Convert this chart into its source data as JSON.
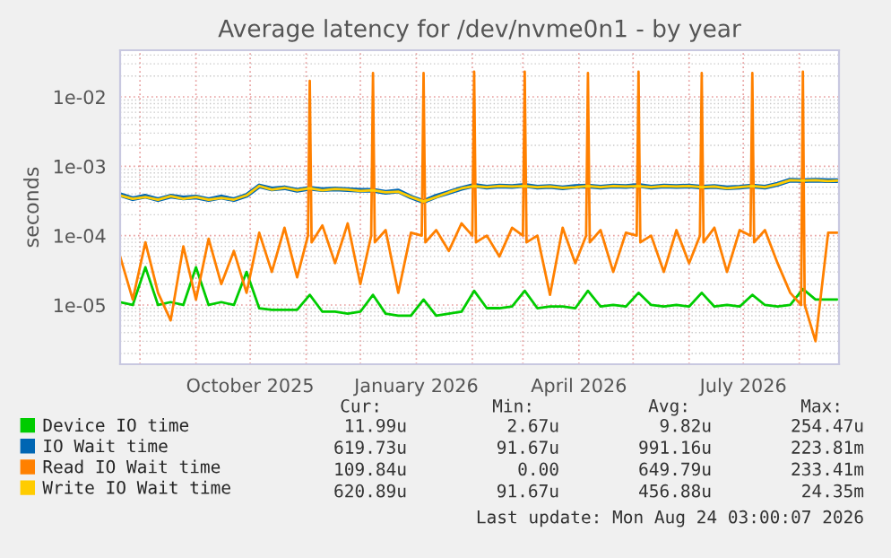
{
  "chart_data": {
    "type": "line",
    "title": "Average latency for /dev/nvme0n1 - by year",
    "ylabel": "seconds",
    "log": "y",
    "grid": true,
    "legend": "bottom",
    "marker": "none",
    "line_style": "solid",
    "xlim": [
      "2025-07-21",
      "2026-08-23"
    ],
    "xticks": [
      {
        "value": "2025-08-01",
        "label": null
      },
      {
        "value": "2025-09-01",
        "label": null
      },
      {
        "value": "2025-10-01",
        "label": "October 2025"
      },
      {
        "value": "2025-11-01",
        "label": null
      },
      {
        "value": "2025-12-01",
        "label": null
      },
      {
        "value": "2026-01-01",
        "label": "January 2026"
      },
      {
        "value": "2026-02-01",
        "label": null
      },
      {
        "value": "2026-03-01",
        "label": null
      },
      {
        "value": "2026-04-01",
        "label": "April 2026"
      },
      {
        "value": "2026-05-01",
        "label": null
      },
      {
        "value": "2026-06-01",
        "label": null
      },
      {
        "value": "2026-07-01",
        "label": "July 2026"
      },
      {
        "value": "2026-08-01",
        "label": null
      }
    ],
    "ylim": [
      1.4e-06,
      0.047
    ],
    "yticks": [
      {
        "value": 1e-05,
        "label": "1e-05"
      },
      {
        "value": 0.0001,
        "label": "1e-04"
      },
      {
        "value": 0.001,
        "label": "1e-03"
      },
      {
        "value": 0.01,
        "label": "1e-02"
      }
    ],
    "x": [
      "2025-07-21",
      "2025-07-28",
      "2025-08-04",
      "2025-08-11",
      "2025-08-18",
      "2025-08-25",
      "2025-09-01",
      "2025-09-08",
      "2025-09-15",
      "2025-09-22",
      "2025-09-29",
      "2025-10-06",
      "2025-10-13",
      "2025-10-20",
      "2025-10-27",
      "2025-11-03",
      "2025-11-10",
      "2025-11-17",
      "2025-11-24",
      "2025-12-01",
      "2025-12-08",
      "2025-12-15",
      "2025-12-22",
      "2025-12-29",
      "2026-01-05",
      "2026-01-12",
      "2026-01-19",
      "2026-01-26",
      "2026-02-02",
      "2026-02-09",
      "2026-02-16",
      "2026-02-23",
      "2026-03-02",
      "2026-03-09",
      "2026-03-16",
      "2026-03-23",
      "2026-03-30",
      "2026-04-06",
      "2026-04-13",
      "2026-04-20",
      "2026-04-27",
      "2026-05-04",
      "2026-05-11",
      "2026-05-18",
      "2026-05-25",
      "2026-06-01",
      "2026-06-08",
      "2026-06-15",
      "2026-06-22",
      "2026-06-29",
      "2026-07-06",
      "2026-07-13",
      "2026-07-20",
      "2026-07-27",
      "2026-08-03",
      "2026-08-10",
      "2026-08-17",
      "2026-08-22"
    ],
    "series": [
      {
        "name": "Device IO time",
        "color": "#00cc00",
        "values": [
          1.1e-05,
          1e-05,
          3.5e-05,
          1e-05,
          1.1e-05,
          1e-05,
          3.5e-05,
          1e-05,
          1.1e-05,
          1e-05,
          3e-05,
          9e-06,
          8.5e-06,
          8.5e-06,
          8.5e-06,
          1.4e-05,
          8e-06,
          8e-06,
          7.5e-06,
          8e-06,
          1.4e-05,
          7.5e-06,
          7e-06,
          7e-06,
          1.2e-05,
          7e-06,
          7.5e-06,
          8e-06,
          1.6e-05,
          9e-06,
          9e-06,
          9.5e-06,
          1.6e-05,
          9e-06,
          9.5e-06,
          9.5e-06,
          9e-06,
          1.6e-05,
          9.5e-06,
          1e-05,
          9.5e-06,
          1.5e-05,
          1e-05,
          9.5e-06,
          1e-05,
          9.5e-06,
          1.5e-05,
          9.5e-06,
          1e-05,
          9.5e-06,
          1.4e-05,
          1e-05,
          9.5e-06,
          1e-05,
          1.7e-05,
          1.2e-05,
          1.2e-05,
          1.2e-05
        ]
      },
      {
        "name": "IO Wait time",
        "color": "#0066b3",
        "values": [
          0.00039,
          0.00034,
          0.00037,
          0.00033,
          0.00037,
          0.00035,
          0.00036,
          0.00033,
          0.00036,
          0.00033,
          0.00038,
          0.00052,
          0.00047,
          0.00049,
          0.00045,
          0.00048,
          0.00046,
          0.00047,
          0.00046,
          0.00045,
          0.00045,
          0.00042,
          0.00044,
          0.00036,
          0.00031,
          0.00037,
          0.00042,
          0.00048,
          0.00053,
          0.0005,
          0.00052,
          0.00051,
          0.00053,
          0.0005,
          0.00051,
          0.00049,
          0.00051,
          0.00052,
          0.0005,
          0.00052,
          0.00051,
          0.00053,
          0.0005,
          0.00052,
          0.00051,
          0.00052,
          0.0005,
          0.00051,
          0.00049,
          0.0005,
          0.00052,
          0.0005,
          0.00055,
          0.00063,
          0.00062,
          0.00063,
          0.00062,
          0.00062
        ]
      },
      {
        "name": "Read IO Wait time",
        "color": "#ff8000",
        "x": [
          "2025-07-21",
          "2025-07-28",
          "2025-08-04",
          "2025-08-11",
          "2025-08-18",
          "2025-08-25",
          "2025-09-01",
          "2025-09-08",
          "2025-09-15",
          "2025-09-22",
          "2025-09-29",
          "2025-10-06",
          "2025-10-13",
          "2025-10-20",
          "2025-10-27",
          "2025-11-02",
          "2025-11-03",
          "2025-11-04",
          "2025-11-10",
          "2025-11-17",
          "2025-11-24",
          "2025-12-01",
          "2025-12-07",
          "2025-12-08",
          "2025-12-09",
          "2025-12-15",
          "2025-12-22",
          "2025-12-29",
          "2026-01-04",
          "2026-01-05",
          "2026-01-06",
          "2026-01-12",
          "2026-01-19",
          "2026-01-26",
          "2026-02-01",
          "2026-02-02",
          "2026-02-03",
          "2026-02-09",
          "2026-02-16",
          "2026-02-23",
          "2026-03-01",
          "2026-03-02",
          "2026-03-03",
          "2026-03-09",
          "2026-03-16",
          "2026-03-23",
          "2026-03-30",
          "2026-04-05",
          "2026-04-06",
          "2026-04-07",
          "2026-04-13",
          "2026-04-20",
          "2026-04-27",
          "2026-05-03",
          "2026-05-04",
          "2026-05-05",
          "2026-05-11",
          "2026-05-18",
          "2026-05-25",
          "2026-06-01",
          "2026-06-07",
          "2026-06-08",
          "2026-06-09",
          "2026-06-15",
          "2026-06-22",
          "2026-06-29",
          "2026-07-05",
          "2026-07-06",
          "2026-07-07",
          "2026-07-13",
          "2026-07-20",
          "2026-07-27",
          "2026-08-02",
          "2026-08-03",
          "2026-08-04",
          "2026-08-10",
          "2026-08-17",
          "2026-08-22"
        ],
        "values": [
          5e-05,
          1.2e-05,
          8e-05,
          1.5e-05,
          6e-06,
          7e-05,
          1.2e-05,
          9e-05,
          2e-05,
          6e-05,
          1.5e-05,
          0.00011,
          3e-05,
          0.00013,
          2.5e-05,
          0.0001,
          0.017,
          8e-05,
          0.00014,
          4e-05,
          0.00015,
          2e-05,
          0.0001,
          0.022,
          8e-05,
          0.00012,
          1.5e-05,
          0.00011,
          0.0001,
          0.022,
          8e-05,
          0.00012,
          6e-05,
          0.00015,
          0.0001,
          0.023,
          8e-05,
          0.0001,
          5e-05,
          0.00013,
          0.0001,
          0.023,
          8e-05,
          0.0001,
          1.4e-05,
          0.00013,
          4e-05,
          0.0001,
          0.022,
          8e-05,
          0.00012,
          3e-05,
          0.00011,
          0.0001,
          0.023,
          8e-05,
          0.0001,
          3e-05,
          0.00012,
          4e-05,
          0.0001,
          0.022,
          8e-05,
          0.00013,
          3e-05,
          0.00012,
          0.0001,
          0.022,
          8e-05,
          0.00012,
          4e-05,
          1.5e-05,
          1e-05,
          0.023,
          1e-05,
          3e-06,
          0.00011,
          0.00011
        ]
      },
      {
        "name": "Write IO Wait time",
        "color": "#ffcc00",
        "values": [
          0.00038,
          0.00034,
          0.00036,
          0.00033,
          0.00037,
          0.00034,
          0.00036,
          0.00033,
          0.00035,
          0.00033,
          0.00038,
          0.00052,
          0.00046,
          0.00049,
          0.00045,
          0.00048,
          0.00045,
          0.00047,
          0.00046,
          0.00044,
          0.00045,
          0.00042,
          0.00043,
          0.00036,
          0.00031,
          0.00036,
          0.00042,
          0.00048,
          0.00052,
          0.0005,
          0.00052,
          0.00051,
          0.00052,
          0.0005,
          0.00051,
          0.00049,
          0.0005,
          0.00052,
          0.0005,
          0.00052,
          0.00051,
          0.00052,
          0.0005,
          0.00052,
          0.00051,
          0.00052,
          0.0005,
          0.00051,
          0.00048,
          0.0005,
          0.00052,
          0.0005,
          0.00055,
          0.00063,
          0.00062,
          0.00063,
          0.00061,
          0.00062
        ]
      }
    ],
    "annotations": [
      "Cur:",
      "Min:",
      "Avg:",
      "Max:",
      "11.99u",
      "2.67u",
      "9.82u",
      "254.47u",
      "619.73u",
      "91.67u",
      "991.16u",
      "223.81m",
      "109.84u",
      "0.00",
      "649.79u",
      "233.41m",
      "620.89u",
      "91.67u",
      "456.88u",
      "24.35m",
      "Last update: Mon Aug 24 03:00:07 2026"
    ]
  }
}
